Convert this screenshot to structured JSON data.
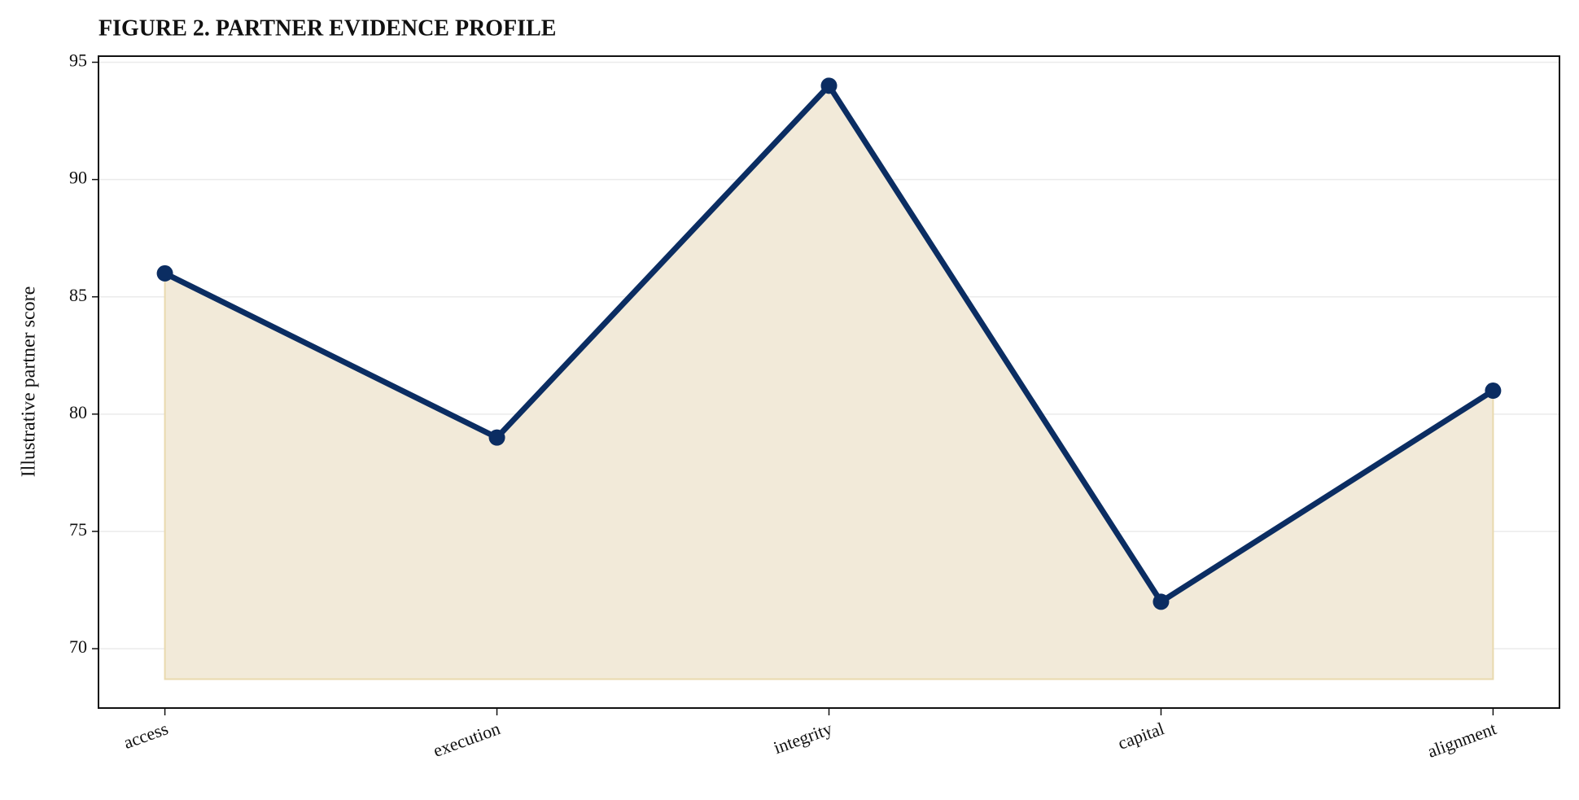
{
  "chart_data": {
    "type": "line",
    "title": "FIGURE 2. PARTNER EVIDENCE PROFILE",
    "y_label": "Illustrative partner score",
    "categories": [
      "access",
      "execution",
      "integrity",
      "capital",
      "alignment"
    ],
    "values": [
      86,
      79,
      94,
      72,
      81
    ],
    "color": "#0b2d62",
    "area_color": "#f2ead9",
    "area_edge_color": "#e9d9ae",
    "area_baseline": 68.7,
    "ylim": [
      67.47,
      95.26
    ],
    "yticks": [
      70,
      75,
      80,
      85,
      90,
      95
    ],
    "grid": true
  }
}
